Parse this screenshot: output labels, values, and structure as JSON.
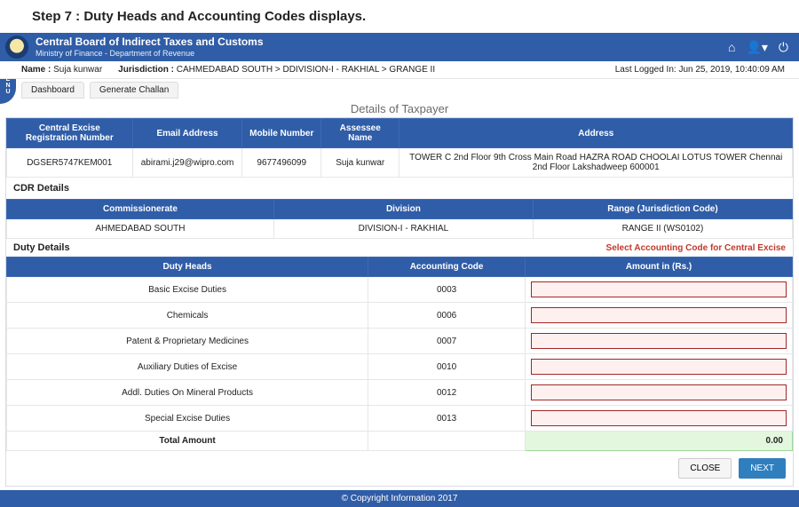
{
  "step_heading": "Step 7 :  Duty Heads and Accounting Codes displays.",
  "header": {
    "org_main": "Central Board of Indirect Taxes and Customs",
    "org_sub": "Ministry of Finance - Department of Revenue"
  },
  "menu_knob": "MENU",
  "meta": {
    "name_label": "Name :",
    "name_value": "Suja kunwar",
    "juris_label": "Jurisdiction :",
    "juris_value": "CAHMEDABAD SOUTH > DDIVISION-I - RAKHIAL > GRANGE II",
    "last_login": "Last Logged In: Jun 25, 2019, 10:40:09 AM"
  },
  "tabs": {
    "dashboard": "Dashboard",
    "generate": "Generate Challan"
  },
  "section_title": "Details of Taxpayer",
  "taxpayer_table": {
    "cols": {
      "reg": "Central Excise Registration Number",
      "email": "Email Address",
      "mobile": "Mobile Number",
      "assessee": "Assessee Name",
      "address": "Address"
    },
    "row": {
      "reg": "DGSER5747KEM001",
      "email": "abirami.j29@wipro.com",
      "mobile": "9677496099",
      "assessee": "Suja kunwar",
      "address": "TOWER C 2nd Floor 9th Cross Main Road HAZRA ROAD CHOOLAI LOTUS TOWER Chennai 2nd Floor Lakshadweep 600001"
    }
  },
  "cdr": {
    "heading": "CDR Details",
    "cols": {
      "comm": "Commissionerate",
      "div": "Division",
      "range": "Range (Jurisdiction Code)"
    },
    "row": {
      "comm": "AHMEDABAD SOUTH",
      "div": "DIVISION-I - RAKHIAL",
      "range": "RANGE II (WS0102)"
    }
  },
  "duty": {
    "heading": "Duty Details",
    "hint": "Select Accounting Code for Central Excise",
    "cols": {
      "head": "Duty Heads",
      "code": "Accounting Code",
      "amount": "Amount in (Rs.)"
    },
    "rows": [
      {
        "head": "Basic Excise Duties",
        "code": "0003"
      },
      {
        "head": "Chemicals",
        "code": "0006"
      },
      {
        "head": "Patent & Proprietary Medicines",
        "code": "0007"
      },
      {
        "head": "Auxiliary Duties of Excise",
        "code": "0010"
      },
      {
        "head": "Addl. Duties On Mineral Products",
        "code": "0012"
      },
      {
        "head": "Special Excise Duties",
        "code": "0013"
      }
    ],
    "total_label": "Total Amount",
    "total_value": "0.00"
  },
  "buttons": {
    "close": "CLOSE",
    "next": "NEXT"
  },
  "footer": "© Copyright Information 2017",
  "colors": {
    "brand_blue": "#2f5da7",
    "error_border": "#a32626",
    "error_bg": "#fff0f0",
    "total_bg": "#e3f7df",
    "hint_red": "#c0392b",
    "btn_primary": "#2f7fbf"
  }
}
